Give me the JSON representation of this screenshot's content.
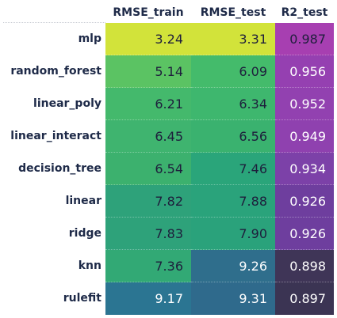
{
  "chart_data": {
    "type": "heatmap",
    "columns": [
      "RMSE_train",
      "RMSE_test",
      "R2_test"
    ],
    "rows": [
      {
        "model": "mlp",
        "values": [
          "3.24",
          "3.31",
          "0.987"
        ]
      },
      {
        "model": "random_forest",
        "values": [
          "5.14",
          "6.09",
          "0.956"
        ]
      },
      {
        "model": "linear_poly",
        "values": [
          "6.21",
          "6.34",
          "0.952"
        ]
      },
      {
        "model": "linear_interact",
        "values": [
          "6.45",
          "6.56",
          "0.949"
        ]
      },
      {
        "model": "decision_tree",
        "values": [
          "6.54",
          "7.46",
          "0.934"
        ]
      },
      {
        "model": "linear",
        "values": [
          "7.82",
          "7.88",
          "0.926"
        ]
      },
      {
        "model": "ridge",
        "values": [
          "7.83",
          "7.90",
          "0.926"
        ]
      },
      {
        "model": "knn",
        "values": [
          "7.36",
          "9.26",
          "0.898"
        ]
      },
      {
        "model": "rulefit",
        "values": [
          "9.17",
          "9.31",
          "0.897"
        ]
      }
    ],
    "cell_colors": [
      [
        "#d2e33a",
        "#d2e33a",
        "#a73fb1"
      ],
      [
        "#5bc363",
        "#44bb6b",
        "#9540b1"
      ],
      [
        "#44b96c",
        "#3eb76e",
        "#9241b0"
      ],
      [
        "#3fb46f",
        "#3ab26f",
        "#8f41af"
      ],
      [
        "#3cb16e",
        "#2aa57a",
        "#7c41a8"
      ],
      [
        "#2ea27a",
        "#2aa37b",
        "#6e3e9e"
      ],
      [
        "#2ea27a",
        "#2aa27b",
        "#6e3e9e"
      ],
      [
        "#32a975",
        "#2f6e8c",
        "#3f3557"
      ],
      [
        "#2b7592",
        "#2f6a8c",
        "#3b3453"
      ]
    ],
    "text_colors": [
      [
        "#1e1e3c",
        "#1e1e3c",
        "#1e1e3c"
      ],
      [
        "#1e1e3c",
        "#1e1e3c",
        "#ffffff"
      ],
      [
        "#1e1e3c",
        "#1e1e3c",
        "#ffffff"
      ],
      [
        "#1e1e3c",
        "#1e1e3c",
        "#ffffff"
      ],
      [
        "#1e1e3c",
        "#1e1e3c",
        "#ffffff"
      ],
      [
        "#1e1e3c",
        "#1e1e3c",
        "#ffffff"
      ],
      [
        "#1e1e3c",
        "#1e1e3c",
        "#ffffff"
      ],
      [
        "#1e1e3c",
        "#ffffff",
        "#ffffff"
      ],
      [
        "#ffffff",
        "#ffffff",
        "#ffffff"
      ]
    ]
  }
}
